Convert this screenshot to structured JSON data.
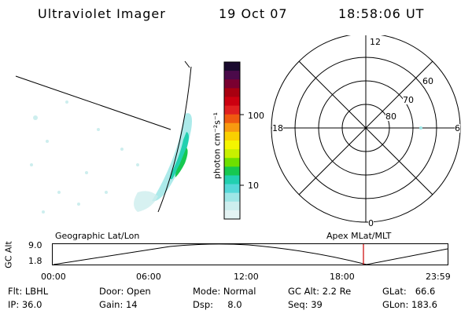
{
  "header": {
    "title": "Ultraviolet Imager",
    "date": "19 Oct 07",
    "time": "18:58:06 UT"
  },
  "colorbar": {
    "unit_label": "photon cm⁻²s⁻¹",
    "ticks": [
      "100",
      "10"
    ],
    "colors": [
      "#1a0a2e",
      "#4b0a4a",
      "#7a0030",
      "#a80010",
      "#cc0010",
      "#e02020",
      "#ef5a10",
      "#f89a10",
      "#fad000",
      "#f5f500",
      "#c8f000",
      "#6ee000",
      "#16c850",
      "#22d0b0",
      "#55d8d8",
      "#9ee6e6",
      "#cdeeee",
      "#e4f3f3"
    ]
  },
  "polar": {
    "mlt_labels": [
      "12",
      "18",
      "6",
      "0"
    ],
    "lat_labels": [
      "60",
      "70",
      "80"
    ]
  },
  "track": {
    "left_title": "Geographic Lat/Lon",
    "right_title": "Apex MLat/MLT",
    "axis_label": "GC Alt",
    "alt_ticks": [
      "9.0",
      "1.8"
    ],
    "time_ticks": [
      "00:00",
      "06:00",
      "12:00",
      "18:00",
      "23:59"
    ],
    "current_marker_color": "#cc0000"
  },
  "footer": {
    "flt": "Flt: LBHL",
    "ip": "IP: 36.0",
    "door": "Door: Open",
    "gain": "Gain: 14",
    "mode": "Mode: Normal",
    "dsp": "Dsp:     8.0",
    "gc_alt": "GC Alt: 2.2 Re",
    "seq": "Seq: 39",
    "glat": "GLat:   66.6",
    "glon": "GLon: 183.6"
  }
}
